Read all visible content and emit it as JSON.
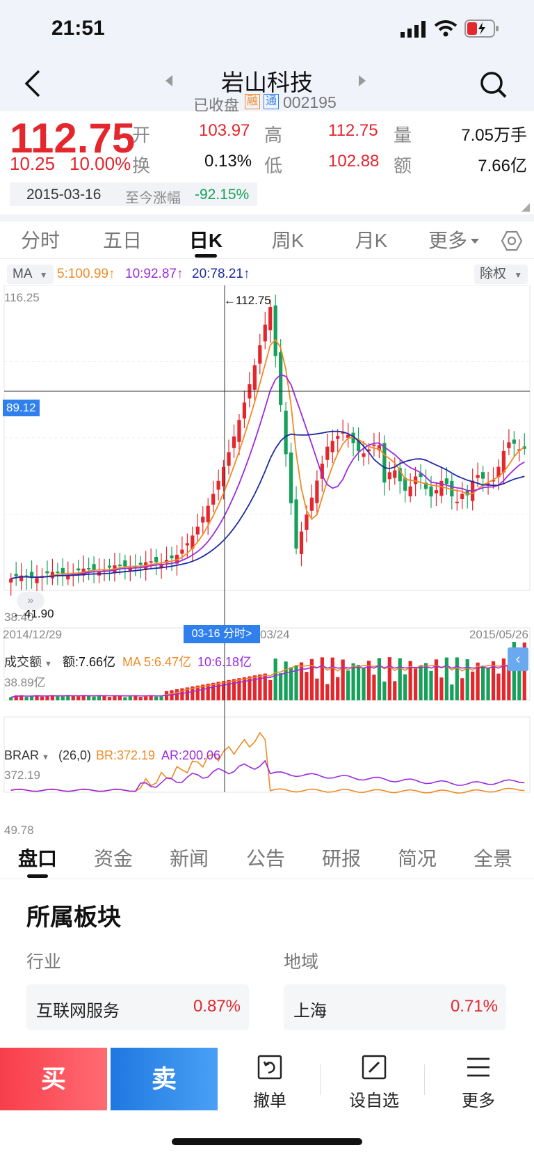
{
  "status_bar": {
    "time": "21:51"
  },
  "header": {
    "title": "岩山科技",
    "status_text": "已收盘",
    "tag_margin": "融",
    "tag_connect": "通",
    "code": "002195"
  },
  "quote": {
    "price": "112.75",
    "change": "10.25",
    "change_pct": "10.00%",
    "open_label": "开",
    "open": "103.97",
    "high_label": "高",
    "high": "112.75",
    "volume_label": "量",
    "volume": "7.05万手",
    "turnover_label": "换",
    "turnover": "0.13%",
    "low_label": "低",
    "low": "102.88",
    "amount_label": "额",
    "amount": "7.66亿",
    "date": "2015-03-16",
    "since_label": "至今涨幅",
    "since_pct": "-92.15%"
  },
  "tabs": [
    "分时",
    "五日",
    "日K",
    "周K",
    "月K",
    "更多"
  ],
  "ma_bar": {
    "selector": "MA",
    "ma5": "5:100.99",
    "ma10": "10:92.87",
    "ma20": "20:78.21",
    "adjust": "除权"
  },
  "kline": {
    "y_top": "116.25",
    "y_bottom": "38.40",
    "crosshair_price": "89.12",
    "high_marker": "112.75",
    "low_marker": "41.90",
    "x_start": "2014/12/29",
    "x_mid": "03/24",
    "x_end": "2015/05/26",
    "cursor_label": "03-16 分时>"
  },
  "volume_panel": {
    "selector": "成交额",
    "amount": "额:7.66亿",
    "ma5": "MA 5:6.47亿",
    "ma10": "10:6.18亿",
    "y_top": "38.89亿"
  },
  "brar_panel": {
    "selector": "BRAR",
    "params": "(26,0)",
    "br": "BR:372.19",
    "ar": "AR:200.06",
    "y_top": "372.19",
    "y_bottom": "49.78"
  },
  "bottom_tabs": [
    "盘口",
    "资金",
    "新闻",
    "公告",
    "研报",
    "简况",
    "全景"
  ],
  "sector": {
    "title": "所属板块",
    "industry_label": "行业",
    "region_label": "地域",
    "industry_name": "互联网服务",
    "industry_pct": "0.87%",
    "region_name": "上海",
    "region_pct": "0.71%"
  },
  "toolbar": {
    "buy": "买",
    "sell": "卖",
    "cancel": "撤单",
    "watchlist": "设自选",
    "more": "更多"
  },
  "colors": {
    "up": "#e4262d",
    "down": "#16a05a",
    "ma5": "#f08a24",
    "ma10": "#9b2bdf",
    "ma20": "#1c2aa0",
    "accent": "#2f80ed"
  }
}
